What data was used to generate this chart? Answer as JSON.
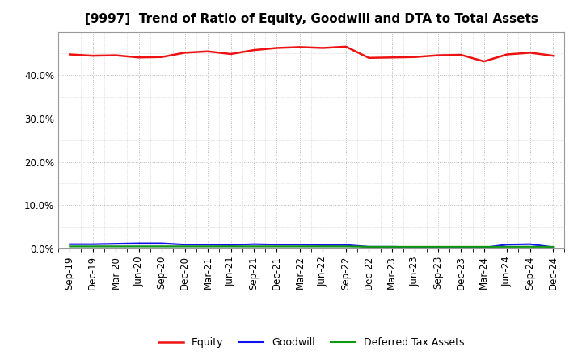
{
  "title": "[9997]  Trend of Ratio of Equity, Goodwill and DTA to Total Assets",
  "x_labels": [
    "Sep-19",
    "Dec-19",
    "Mar-20",
    "Jun-20",
    "Sep-20",
    "Dec-20",
    "Mar-21",
    "Jun-21",
    "Sep-21",
    "Dec-21",
    "Mar-22",
    "Jun-22",
    "Sep-22",
    "Dec-22",
    "Mar-23",
    "Jun-23",
    "Sep-23",
    "Dec-23",
    "Mar-24",
    "Jun-24",
    "Sep-24",
    "Dec-24"
  ],
  "equity": [
    44.8,
    44.5,
    44.6,
    44.1,
    44.2,
    45.2,
    45.5,
    44.9,
    45.8,
    46.3,
    46.5,
    46.3,
    46.6,
    44.0,
    44.1,
    44.2,
    44.6,
    44.7,
    43.2,
    44.8,
    45.2,
    44.5
  ],
  "goodwill": [
    1.0,
    1.0,
    1.1,
    1.2,
    1.2,
    0.9,
    0.9,
    0.8,
    1.0,
    0.9,
    0.9,
    0.8,
    0.8,
    0.4,
    0.4,
    0.3,
    0.3,
    0.2,
    0.2,
    0.9,
    1.0,
    0.3
  ],
  "dta": [
    0.5,
    0.5,
    0.5,
    0.5,
    0.5,
    0.5,
    0.5,
    0.5,
    0.5,
    0.5,
    0.5,
    0.5,
    0.5,
    0.4,
    0.4,
    0.4,
    0.4,
    0.4,
    0.4,
    0.4,
    0.4,
    0.4
  ],
  "equity_color": "#EE1111",
  "goodwill_color": "#1111EE",
  "dta_color": "#119911",
  "ylim": [
    0,
    50
  ],
  "yticks": [
    0,
    10,
    20,
    30,
    40
  ],
  "background_color": "#FFFFFF",
  "plot_bg_color": "#FFFFFF",
  "grid_color": "#BBBBBB",
  "title_fontsize": 11,
  "tick_fontsize": 8.5
}
